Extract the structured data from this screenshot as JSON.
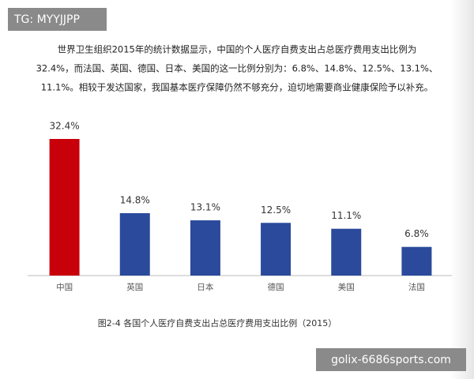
{
  "tag": "TG: MYYJJPP",
  "paragraph": [
    "世界卫生组织2015年的统计数据显示，中国的个人医疗自费支出占总医疗费用支出比例为",
    "32.4%，而法国、英国、德国、日本、美国的这一比例分别为：6.8%、14.8%、12.5%、13.1%、",
    "11.1%。相较于发达国家，我国基本医疗保障仍然不够充分，迫切地需要商业健康保险予以补充。"
  ],
  "chart_data": {
    "type": "bar",
    "categories": [
      "中国",
      "英国",
      "日本",
      "德国",
      "美国",
      "法国"
    ],
    "values": [
      32.4,
      14.8,
      13.1,
      12.5,
      11.1,
      6.8
    ],
    "value_labels": [
      "32.4%",
      "14.8%",
      "13.1%",
      "12.5%",
      "11.1%",
      "6.8%"
    ],
    "colors": [
      "#c8000a",
      "#2b4a9c",
      "#2b4a9c",
      "#2b4a9c",
      "#2b4a9c",
      "#2b4a9c"
    ],
    "caption": "图2-4 各国个人医疗自费支出占总医疗费用支出比例（2015）"
  },
  "watermark": "golix-6686sports.com"
}
